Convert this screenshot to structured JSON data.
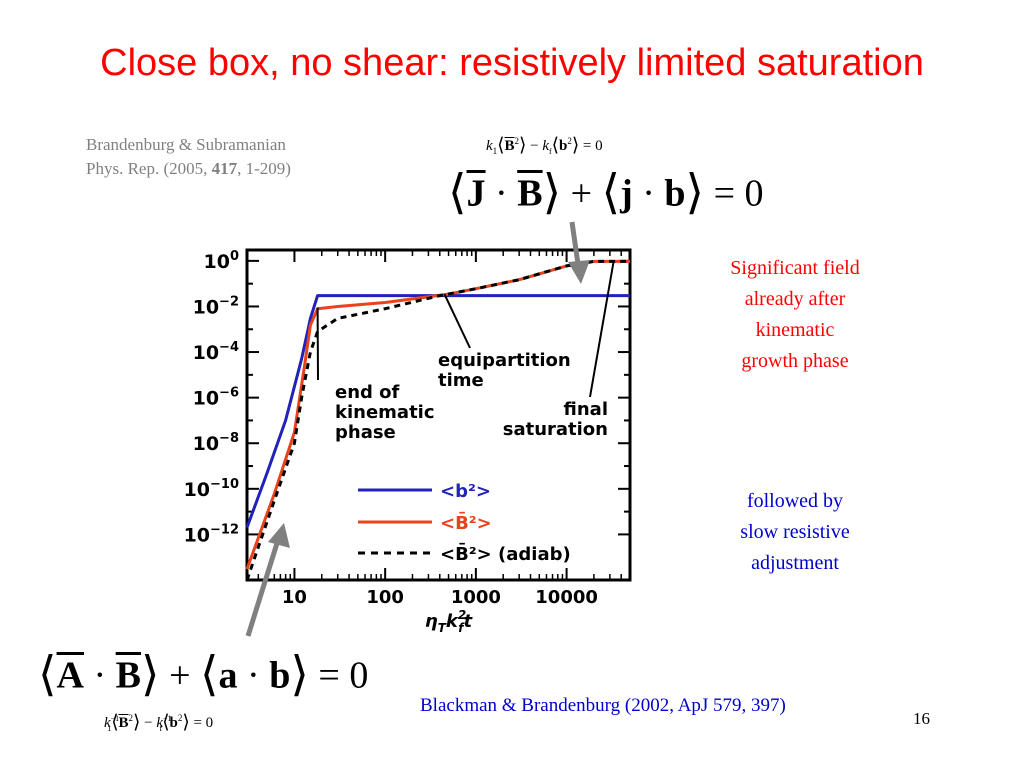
{
  "title": "Close box, no shear: resistively limited saturation",
  "references": {
    "top_line1": "Brandenburg & Subramanian",
    "top_line2_prefix": "Phys. Rep. (2005, ",
    "top_line2_bold": "417",
    "top_line2_suffix": ", 1-209)",
    "bottom": "Blackman & Brandenburg (2002, ApJ 579, 397)"
  },
  "equations": {
    "top_small": {
      "k1": "k",
      "k1_sub": "1",
      "B": "B",
      "sq": "2",
      "minus": "−",
      "kf": "k",
      "kf_sub": "f",
      "b": "b",
      "eq": "= 0"
    },
    "top_big": {
      "J": "J",
      "dot": "·",
      "B": "B",
      "plus": "+",
      "j": "j",
      "b": "b",
      "eq": "= 0"
    },
    "bottom_big": {
      "A": "A",
      "dot": "·",
      "B": "B",
      "plus": "+",
      "a": "a",
      "b": "b",
      "eq": "= 0"
    },
    "bottom_small": {
      "k1": "k",
      "k1_sup": "−1",
      "k1_sub": "1",
      "B": "B",
      "sq": "2",
      "minus": "−",
      "kf": "k",
      "kf_sup": "−1",
      "kf_sub": "f",
      "b": "b",
      "eq": "= 0"
    }
  },
  "notes": {
    "red": [
      "Significant field",
      "already after",
      "kinematic",
      "growth phase"
    ],
    "blue": [
      "followed by",
      "slow resistive",
      "adjustment"
    ]
  },
  "page_number": "16",
  "colors": {
    "title": "#ff0000",
    "reference_top": "#808080",
    "note_red": "#ff0000",
    "note_blue": "#0000cc",
    "series_b2": "#2222bb",
    "series_B2": "#e8431c",
    "series_adiab": "#000000",
    "arrow": "#808080"
  },
  "chart_data": {
    "type": "line",
    "xscale": "log",
    "yscale": "log",
    "xlim": [
      3,
      50000
    ],
    "ylim": [
      1e-14,
      3
    ],
    "xticks": [
      10,
      100,
      1000,
      10000
    ],
    "xtick_labels": [
      "10",
      "100",
      "1000",
      "10000"
    ],
    "yticks": [
      1,
      0.01,
      0.0001,
      1e-06,
      1e-08,
      1e-10,
      1e-12
    ],
    "ytick_labels": [
      {
        "base": "10",
        "exp": "0"
      },
      {
        "base": "10",
        "exp": "−2"
      },
      {
        "base": "10",
        "exp": "−4"
      },
      {
        "base": "10",
        "exp": "−6"
      },
      {
        "base": "10",
        "exp": "−8"
      },
      {
        "base": "10",
        "exp": "−10"
      },
      {
        "base": "10",
        "exp": "−12"
      }
    ],
    "xlabel": {
      "main": "η",
      "sub1": "T",
      "k": "k",
      "sup": "2",
      "sub2": "f",
      "t": "t"
    },
    "legend": [
      {
        "label": "<b²>"
      },
      {
        "label": "<B̄²>"
      },
      {
        "label": "<B̄²> (adiab)"
      }
    ],
    "series": [
      {
        "key": "b2",
        "dash": "solid",
        "points": [
          [
            3,
            2e-12
          ],
          [
            5,
            5e-10
          ],
          [
            8,
            1e-07
          ],
          [
            12,
            5e-05
          ],
          [
            15,
            0.003
          ],
          [
            18,
            0.03
          ],
          [
            50,
            0.03
          ],
          [
            1000,
            0.03
          ],
          [
            50000,
            0.03
          ]
        ]
      },
      {
        "key": "B2",
        "dash": "solid",
        "points": [
          [
            3,
            3e-14
          ],
          [
            6,
            6e-11
          ],
          [
            10,
            3e-08
          ],
          [
            13,
            3e-05
          ],
          [
            15,
            0.0015
          ],
          [
            18,
            0.008
          ],
          [
            30,
            0.01
          ],
          [
            100,
            0.015
          ],
          [
            500,
            0.035
          ],
          [
            1000,
            0.06
          ],
          [
            3000,
            0.15
          ],
          [
            10000,
            0.6
          ],
          [
            20000,
            0.95
          ],
          [
            50000,
            0.95
          ]
        ]
      },
      {
        "key": "adiab",
        "dash": "dashed",
        "points": [
          [
            3,
            1e-14
          ],
          [
            6,
            3e-11
          ],
          [
            10,
            1e-08
          ],
          [
            12,
            1e-06
          ],
          [
            15,
            0.0001
          ],
          [
            18,
            0.0008
          ],
          [
            30,
            0.003
          ],
          [
            100,
            0.008
          ],
          [
            400,
            0.03
          ],
          [
            1000,
            0.06
          ],
          [
            3000,
            0.15
          ],
          [
            10000,
            0.6
          ],
          [
            20000,
            0.95
          ],
          [
            50000,
            0.95
          ]
        ]
      }
    ],
    "annotations": [
      {
        "lines": [
          "end of",
          "kinematic",
          "phase"
        ],
        "target": [
          18,
          0.009
        ]
      },
      {
        "lines": [
          "equipartition",
          "time"
        ],
        "target": [
          450,
          0.035
        ]
      },
      {
        "lines": [
          "final",
          "saturation"
        ],
        "target": [
          33000,
          0.95
        ]
      }
    ]
  }
}
